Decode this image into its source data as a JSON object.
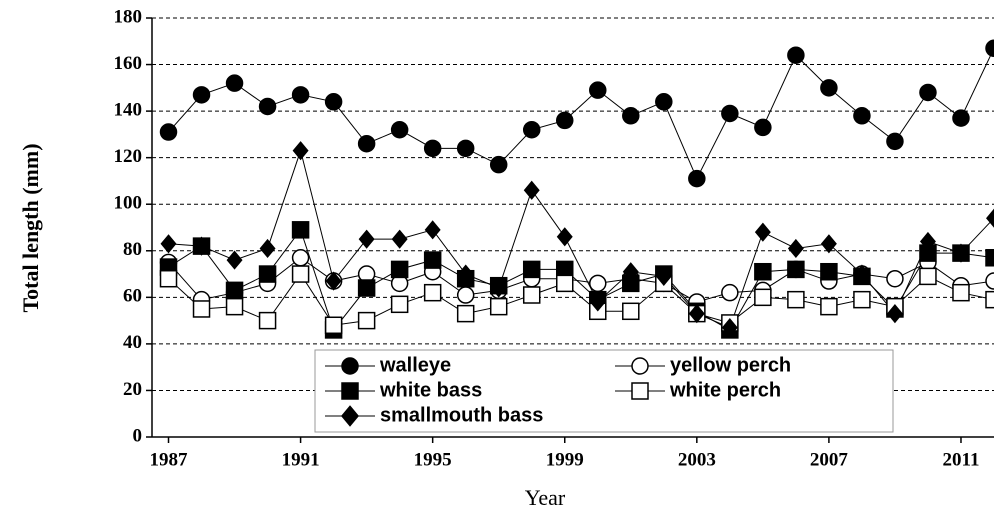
{
  "chart_data": {
    "type": "line",
    "x_label": "Year",
    "y_label": "Total length (mm)",
    "x": [
      1987,
      1988,
      1989,
      1990,
      1991,
      1992,
      1993,
      1994,
      1995,
      1996,
      1997,
      1998,
      1999,
      2000,
      2001,
      2002,
      2003,
      2004,
      2005,
      2006,
      2007,
      2008,
      2009,
      2010,
      2011,
      2012
    ],
    "xlim": [
      1986.5,
      2012
    ],
    "xticks": [
      1987,
      1991,
      1995,
      1999,
      2003,
      2007,
      2011
    ],
    "ylim": [
      0,
      180
    ],
    "yticks": [
      0,
      20,
      40,
      60,
      80,
      100,
      120,
      140,
      160,
      180
    ],
    "grid": true,
    "series": [
      {
        "name": "walleye",
        "color": "#000000",
        "marker": "circle",
        "filled": true,
        "values": [
          131,
          147,
          152,
          142,
          147,
          144,
          126,
          132,
          124,
          124,
          117,
          132,
          136,
          149,
          138,
          144,
          111,
          139,
          133,
          164,
          150,
          138,
          127,
          148,
          137,
          167
        ]
      },
      {
        "name": "yellow perch",
        "color": "#000000",
        "marker": "circle",
        "filled": false,
        "values": [
          75,
          59,
          62,
          66,
          77,
          67,
          70,
          66,
          71,
          61,
          63,
          68,
          68,
          66,
          68,
          66,
          58,
          62,
          63,
          72,
          67,
          70,
          68,
          75,
          65,
          67
        ]
      },
      {
        "name": "white bass",
        "color": "#000000",
        "marker": "square",
        "filled": true,
        "values": [
          73,
          82,
          63,
          70,
          89,
          46,
          64,
          72,
          76,
          68,
          65,
          72,
          72,
          59,
          66,
          70,
          54,
          46,
          71,
          72,
          71,
          69,
          55,
          79,
          79,
          77
        ]
      },
      {
        "name": "white perch",
        "color": "#000000",
        "marker": "square",
        "filled": false,
        "values": [
          68,
          55,
          56,
          50,
          70,
          48,
          50,
          57,
          62,
          53,
          56,
          61,
          66,
          54,
          54,
          66,
          53,
          49,
          60,
          59,
          56,
          59,
          56,
          69,
          62,
          59
        ]
      },
      {
        "name": "smallmouth bass",
        "color": "#000000",
        "marker": "diamond",
        "filled": true,
        "values": [
          83,
          82,
          76,
          81,
          123,
          67,
          85,
          85,
          89,
          70,
          64,
          106,
          86,
          58,
          71,
          69,
          53,
          47,
          88,
          81,
          83,
          70,
          53,
          84,
          79,
          94
        ]
      }
    ]
  }
}
